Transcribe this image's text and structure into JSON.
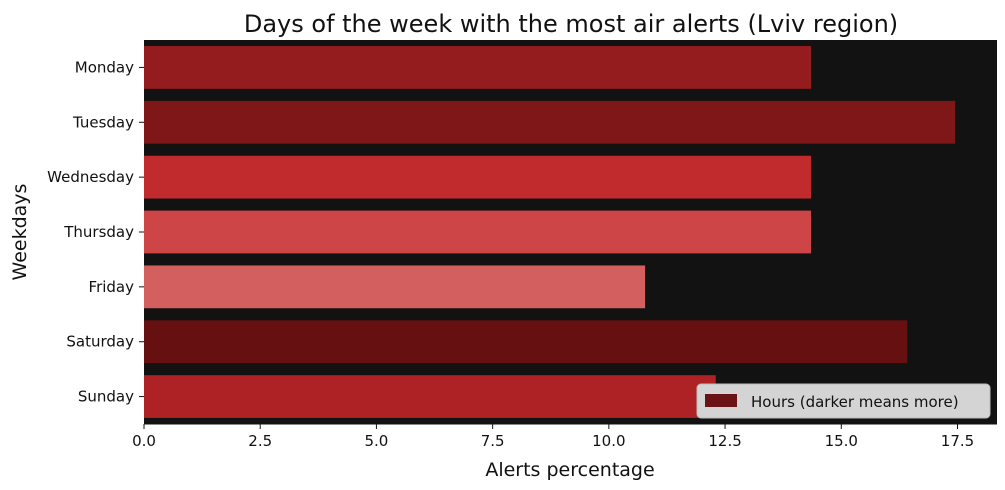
{
  "chart_data": {
    "type": "bar",
    "orientation": "horizontal",
    "title": "Days of the week with the most air alerts (Lviv region)",
    "xlabel": "Alerts percentage",
    "ylabel": "Weekdays",
    "categories": [
      "Monday",
      "Tuesday",
      "Wednesday",
      "Thursday",
      "Friday",
      "Saturday",
      "Sunday"
    ],
    "values": [
      14.35,
      17.45,
      14.35,
      14.35,
      10.78,
      16.42,
      12.3
    ],
    "bar_colors": [
      "#941c1f",
      "#7f1719",
      "#c22b2e",
      "#cd4547",
      "#d3605f",
      "#671012",
      "#ae2125"
    ],
    "xlim": [
      0,
      18.35
    ],
    "xticks": [
      0,
      2.5,
      5,
      7.5,
      10,
      12.5,
      15,
      17.5
    ],
    "xtick_labels": [
      "0.0",
      "2.5",
      "5.0",
      "7.5",
      "10.0",
      "12.5",
      "15.0",
      "17.5"
    ],
    "grid": false,
    "background": "#121212",
    "legend": {
      "position": "bottom-right",
      "label": "Hours (darker means more)",
      "swatch_color": "#6b1214"
    }
  }
}
